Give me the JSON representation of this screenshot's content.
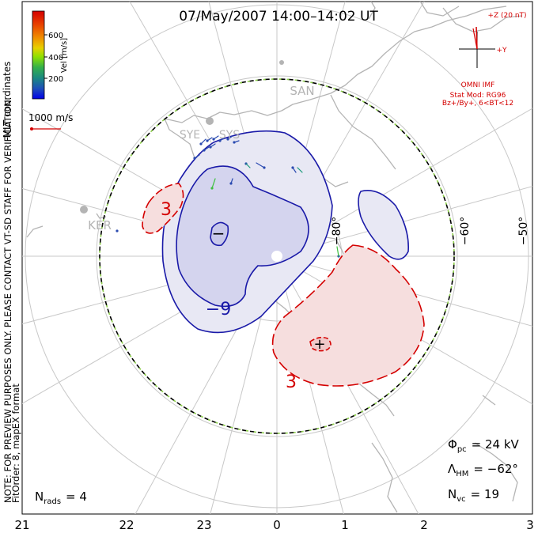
{
  "header": {
    "title": "07/May/2007 14:00–14:02 UT"
  },
  "colorbar": {
    "title": "Vel [m/s]",
    "ticks": [
      "600",
      "400",
      "200"
    ],
    "colors": [
      "#d40000",
      "#e03a00",
      "#f07800",
      "#e8c800",
      "#a8e000",
      "#40c040",
      "#1a9a7a",
      "#2060b0",
      "#0000e0"
    ]
  },
  "coords_label": "MLT coordinates",
  "reference_vector": {
    "label": "1000 m/s"
  },
  "note": "NOTE: FOR PREVIEW PURPOSES ONLY. PLEASE CONTACT VT-SD STAFF FOR VERIFICATION.",
  "fit_info": "FitOrder: 8,  mapEX format",
  "imf": {
    "z_label": "+Z (20 nT)",
    "y_label": "+Y",
    "source": "OMNI IMF",
    "model_line1": "Stat Mod: RG96",
    "model_line2": "Bz+/By+, 6<BT<12"
  },
  "stations": [
    "SAN",
    "SYE",
    "SYS",
    "KER"
  ],
  "lat_labels": [
    "−80°",
    "−60°",
    "−50°"
  ],
  "contour_labels": [
    "3",
    "−9",
    "3"
  ],
  "potential_markers": [
    "−",
    "+"
  ],
  "mlt_labels": [
    "21",
    "22",
    "23",
    "0",
    "1",
    "2",
    "3"
  ],
  "stats": {
    "phi_pc": {
      "symbol": "Φ",
      "sub": "pc",
      "value": "= 24 kV"
    },
    "lambda_hm": {
      "symbol": "Λ",
      "sub": "HM",
      "value": "= −62°"
    },
    "n_vc": {
      "symbol": "N",
      "sub": "vc",
      "value": "= 19"
    },
    "n_rads": {
      "symbol": "N",
      "sub": "rads",
      "value": "= 4"
    }
  }
}
